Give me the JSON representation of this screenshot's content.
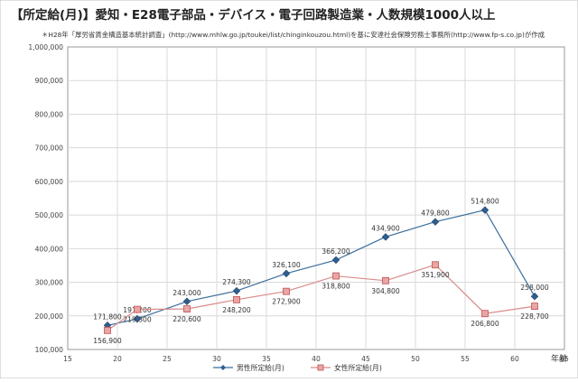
{
  "chart_data": {
    "type": "line",
    "title": "【所定給(月)】愛知・E28電子部品・デバイス・電子回路製造業・人数規模1000人以上",
    "subtitle": "＊H28年「厚労省賃金構造基本統計調査」(http://www.mhlw.go.jp/toukei/list/chinginkouzou.html)を基に安達社会保険労務士事務所(http://www.fp-s.co.jp)が作成",
    "xlabel": "年齢",
    "ylabel": "",
    "xlim": [
      15,
      65
    ],
    "ylim": [
      100000,
      1000000
    ],
    "x_ticks": [
      15,
      20,
      25,
      30,
      35,
      40,
      45,
      50,
      55,
      60,
      65
    ],
    "y_ticks": [
      100000,
      200000,
      300000,
      400000,
      500000,
      600000,
      700000,
      800000,
      900000,
      1000000
    ],
    "x_tick_labels": [
      "15",
      "20",
      "25",
      "30",
      "35",
      "40",
      "45",
      "50",
      "55",
      "60",
      "65"
    ],
    "y_tick_labels": [
      "100,000",
      "200,000",
      "300,000",
      "400,000",
      "500,000",
      "600,000",
      "700,000",
      "800,000",
      "900,000",
      "1,000,000"
    ],
    "grid": true,
    "legend_position": "bottom",
    "series": [
      {
        "name": "男性所定給(月)",
        "color": "#3c6e9c",
        "marker": "diamond",
        "x": [
          19,
          22,
          27,
          32,
          37,
          42,
          47,
          52,
          57,
          62
        ],
        "values": [
          171800,
          191200,
          243000,
          274300,
          326100,
          366200,
          434900,
          479800,
          514800,
          258000
        ],
        "labels": [
          "171,800",
          "191,200",
          "243,000",
          "274,300",
          "326,100",
          "366,200",
          "434,900",
          "479,800",
          "514,800",
          "258,000"
        ]
      },
      {
        "name": "女性所定給(月)",
        "color": "#d98a8a",
        "marker": "square",
        "x": [
          19,
          22,
          27,
          32,
          37,
          42,
          47,
          52,
          57,
          62
        ],
        "values": [
          156900,
          219300,
          220600,
          248200,
          272900,
          318800,
          304800,
          351900,
          206800,
          228700
        ],
        "labels": [
          "156,900",
          "219,300",
          "220,600",
          "248,200",
          "272,900",
          "318,800",
          "304,800",
          "351,900",
          "206,800",
          "228,700"
        ]
      }
    ]
  }
}
